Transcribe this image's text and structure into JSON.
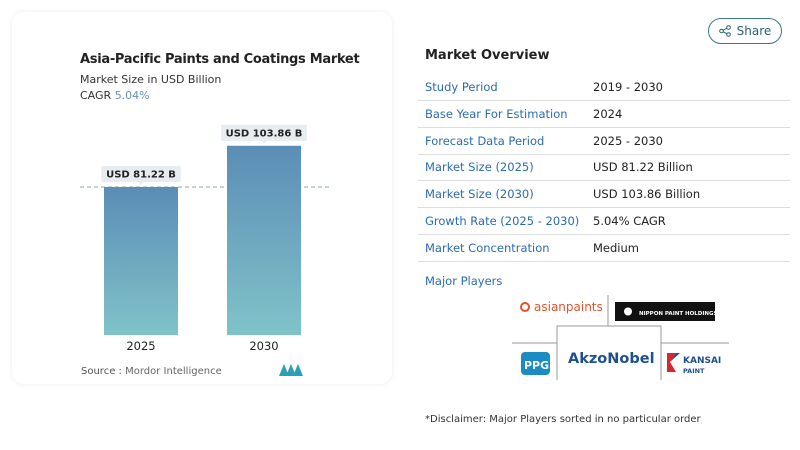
{
  "chart_data": {
    "type": "bar",
    "title": "Asia-Pacific Paints and Coatings Market",
    "subtitle": "Market Size in USD Billion",
    "cagr_label": "CAGR",
    "cagr_value": "5.04%",
    "categories": [
      "2025",
      "2030"
    ],
    "values": [
      81.22,
      103.86
    ],
    "data_labels": [
      "USD 81.22 B",
      "USD 103.86 B"
    ],
    "reference_line": 81.22,
    "bar_colors": [
      "#5b8db6",
      "#80c3c9"
    ],
    "source_label": "Source :",
    "source": "Mordor Intelligence"
  },
  "share": {
    "label": "Share",
    "icon": "share-icon"
  },
  "overview": {
    "title": "Market Overview",
    "rows": [
      {
        "label": "Study Period",
        "value": "2019 - 2030"
      },
      {
        "label": "Base Year For Estimation",
        "value": "2024"
      },
      {
        "label": "Forecast Data Period",
        "value": "2025 - 2030"
      },
      {
        "label": "Market Size (2025)",
        "value": "USD 81.22 Billion"
      },
      {
        "label": "Market Size (2030)",
        "value": "USD 103.86 Billion"
      },
      {
        "label": "Growth Rate (2025 - 2030)",
        "value": "5.04% CAGR"
      },
      {
        "label": "Market Concentration",
        "value": "Medium"
      }
    ],
    "major_players_label": "Major Players",
    "players": [
      "asianpaints",
      "NIPPON PAINT HOLDINGS",
      "PPG",
      "AkzoNobel",
      "KANSAI PAINT"
    ],
    "disclaimer": "*Disclaimer: Major Players sorted in no particular order"
  }
}
